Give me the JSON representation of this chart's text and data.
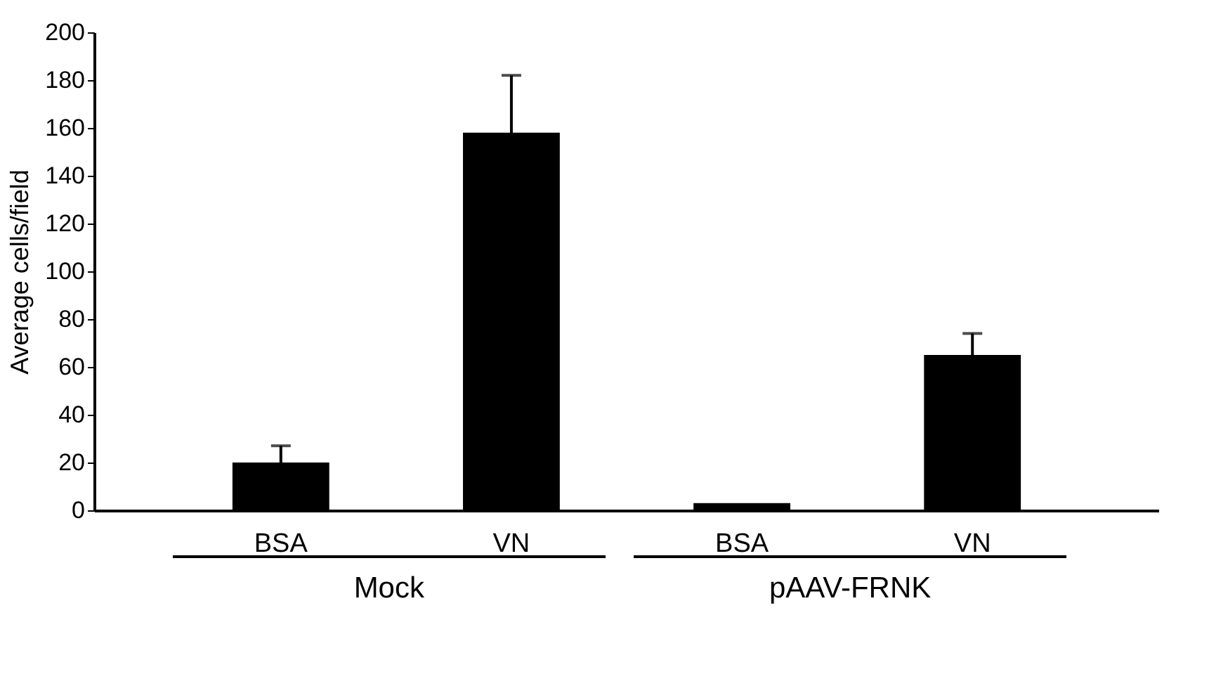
{
  "chart_data": {
    "type": "bar",
    "ylabel": "Average cells/field",
    "categories": [
      "BSA",
      "VN",
      "BSA",
      "VN"
    ],
    "values": [
      20,
      158,
      3,
      65
    ],
    "errors": [
      7,
      24,
      null,
      9
    ],
    "color": "#000000",
    "ylim": [
      0,
      200
    ],
    "yticks": [
      0,
      20,
      40,
      60,
      80,
      100,
      120,
      140,
      160,
      180,
      200
    ],
    "annotations": [
      "Mock",
      "pAAV-FRNK"
    ]
  }
}
